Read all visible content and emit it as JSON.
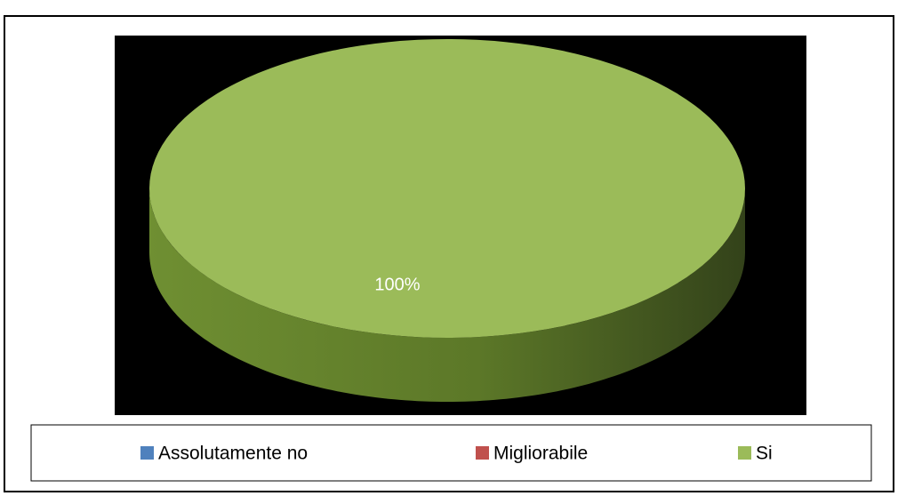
{
  "chart_data": {
    "type": "pie",
    "categories": [
      "Assolutamente no",
      "Migliorabile",
      "Si"
    ],
    "values": [
      0,
      0,
      100
    ],
    "value_labels": [
      null,
      null,
      "100%"
    ],
    "colors": [
      "#4f81bd",
      "#c0504d",
      "#9bbb59"
    ],
    "legend": "bottom",
    "three_d": true
  }
}
